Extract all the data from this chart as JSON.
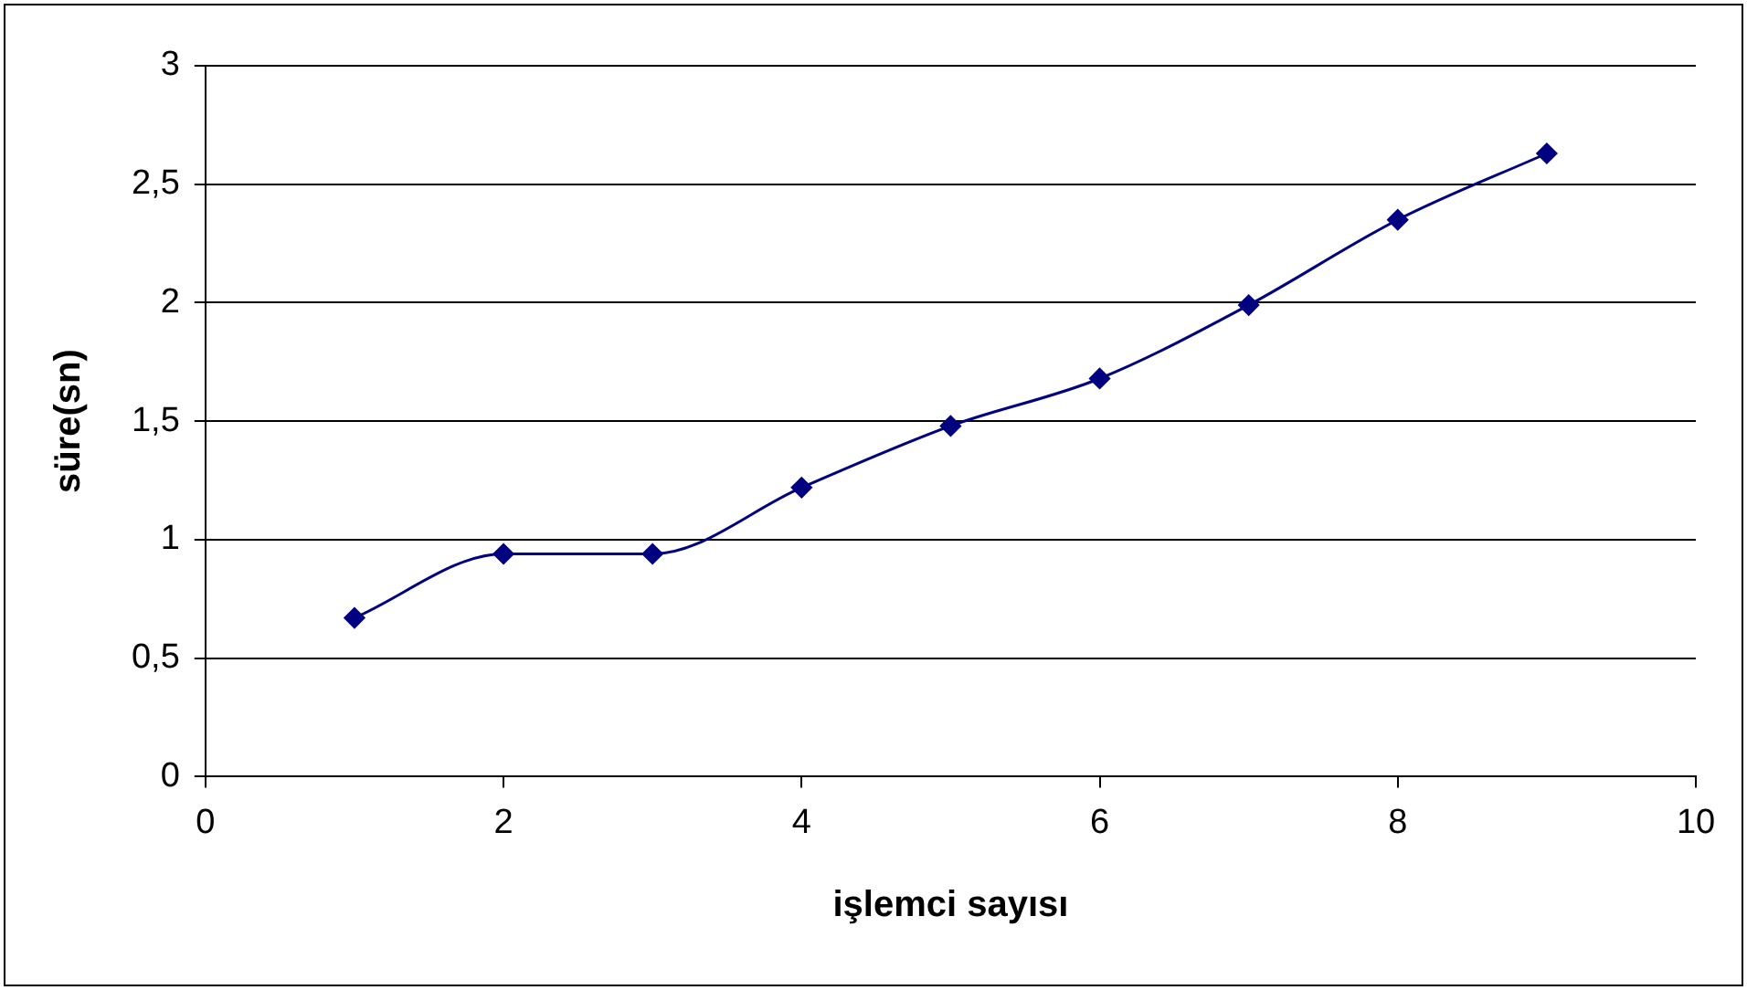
{
  "chart_data": {
    "type": "line",
    "xlabel": "işlemci sayısı",
    "ylabel": "süre(sn)",
    "x": [
      1,
      2,
      3,
      4,
      5,
      6,
      7,
      8,
      9
    ],
    "series": [
      {
        "color": "#000080",
        "values": [
          0.67,
          0.94,
          0.94,
          1.22,
          1.48,
          1.68,
          1.99,
          2.35,
          2.63
        ]
      }
    ],
    "xlim": [
      0,
      10
    ],
    "xticks": [
      0,
      2,
      4,
      6,
      8,
      10
    ],
    "ylim": [
      0,
      3
    ],
    "yticks": [
      0,
      {
        "value": 0.5,
        "label": "0,5"
      },
      1,
      {
        "value": 1.5,
        "label": "1,5"
      },
      2,
      {
        "value": 2.5,
        "label": "2,5"
      },
      3
    ],
    "grid": "y",
    "legend": false,
    "marker": "diamond",
    "line_style": "solid"
  }
}
